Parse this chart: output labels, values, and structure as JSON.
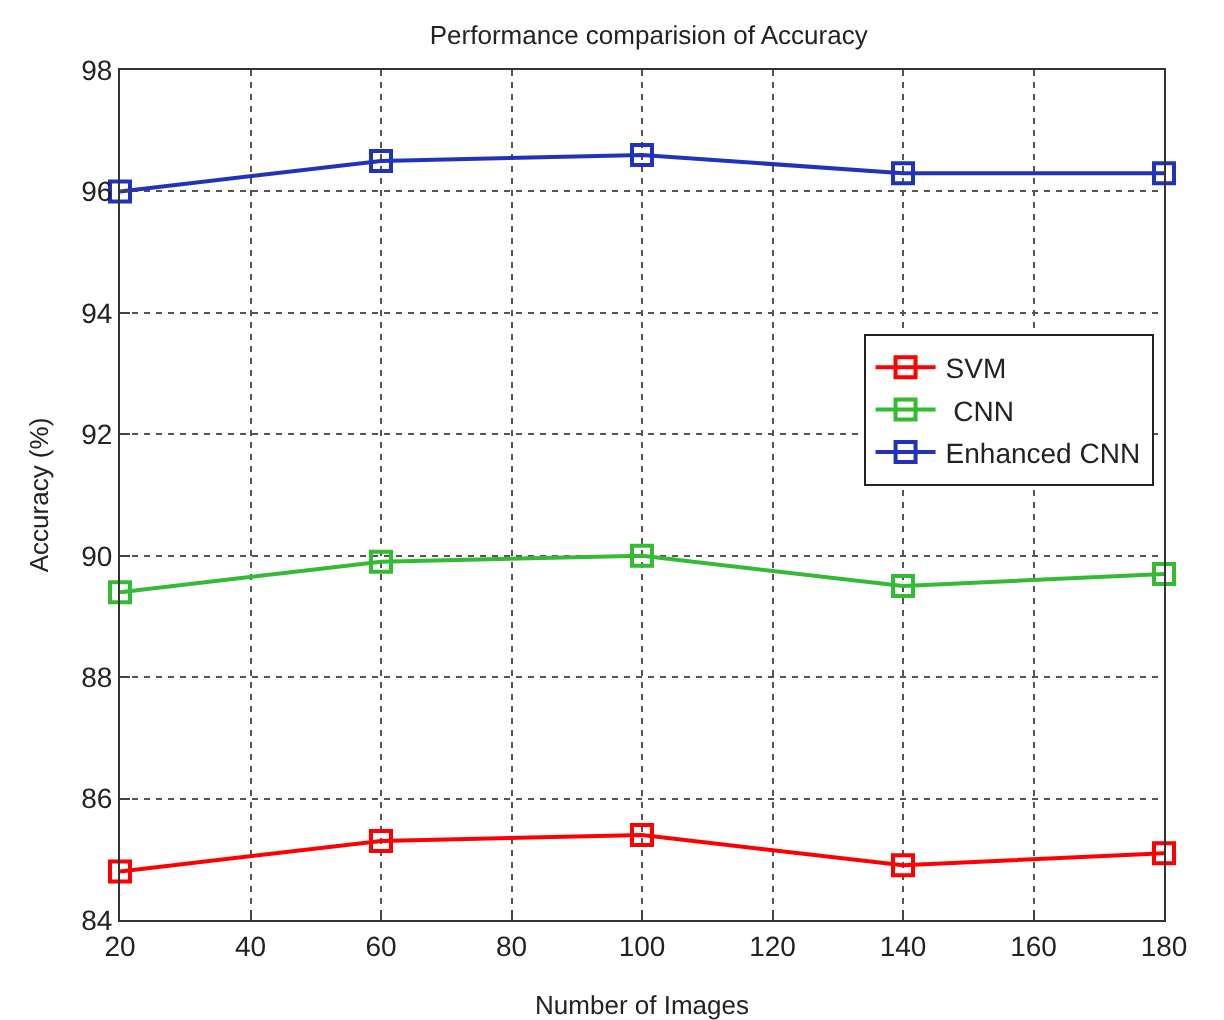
{
  "chart_data": {
    "type": "line",
    "title": "Performance comparision of Accuracy",
    "xlabel": "Number of Images",
    "ylabel": "Accuracy (%)",
    "x": [
      20,
      60,
      100,
      140,
      180
    ],
    "series": [
      {
        "name": "SVM",
        "color": "#ff0000",
        "values": [
          84.8,
          85.3,
          85.4,
          84.9,
          85.1
        ]
      },
      {
        "name": " CNN",
        "color": "#33bb33",
        "values": [
          89.4,
          89.9,
          90.0,
          89.5,
          89.7
        ]
      },
      {
        "name": "Enhanced CNN",
        "color": "#2233bb",
        "values": [
          96.0,
          96.5,
          96.6,
          96.3,
          96.3
        ]
      }
    ],
    "xlim": [
      20,
      180
    ],
    "xticks": [
      20,
      40,
      60,
      80,
      100,
      120,
      140,
      160,
      180
    ],
    "ylim": [
      84,
      98
    ],
    "yticks": [
      84,
      86,
      88,
      90,
      92,
      94,
      96,
      98
    ],
    "grid": true,
    "legend": "right",
    "marker": "square",
    "line_style": "solid"
  }
}
